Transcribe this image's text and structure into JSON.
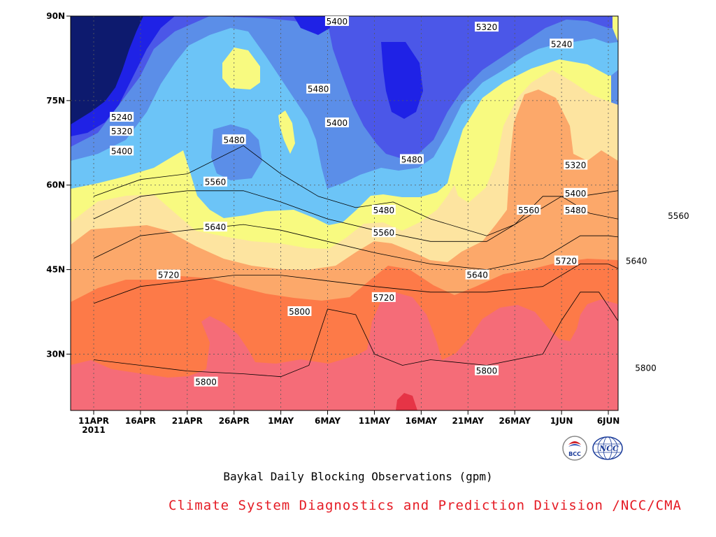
{
  "chart_data": {
    "type": "contour",
    "title": "Baykal Daily Blocking Observations (gpm)",
    "credit": "Climate System Diagnostics and Prediction Division /NCC/CMA",
    "xlabel": "",
    "ylabel": "",
    "x_ticks": [
      "11APR",
      "16APR",
      "21APR",
      "26APR",
      "1MAY",
      "6MAY",
      "11MAY",
      "16MAY",
      "21MAY",
      "26MAY",
      "1JUN",
      "6JUN"
    ],
    "x_year_label": "2011",
    "y_ticks": [
      "30N",
      "45N",
      "60N",
      "75N",
      "90N"
    ],
    "ylim": [
      20,
      90
    ],
    "contour_levels": [
      5240,
      5320,
      5400,
      5480,
      5560,
      5640,
      5720,
      5800
    ],
    "palette": [
      "#0d1a6e",
      "#1f22e6",
      "#4b57e8",
      "#5b8ee8",
      "#6cc4f7",
      "#f8fa80",
      "#fde4a0",
      "#fca86a",
      "#fd7a48",
      "#f56c78",
      "#e63446"
    ],
    "grid": "dotted",
    "contour_lines": [
      {
        "level": 5800,
        "points": [
          [
            0,
            29
          ],
          [
            5,
            28
          ],
          [
            10,
            27
          ],
          [
            16,
            26.5
          ],
          [
            20,
            26
          ],
          [
            23,
            28
          ],
          [
            25,
            38
          ],
          [
            28,
            37
          ],
          [
            30,
            30
          ],
          [
            33,
            28
          ],
          [
            36,
            29
          ],
          [
            42,
            28
          ],
          [
            48,
            30
          ],
          [
            50,
            36
          ],
          [
            52,
            41
          ],
          [
            54,
            41
          ],
          [
            56,
            36
          ],
          [
            58,
            30
          ],
          [
            60,
            29
          ],
          [
            63,
            33
          ],
          [
            66,
            38
          ],
          [
            70,
            39
          ],
          [
            73,
            36
          ],
          [
            75,
            32
          ],
          [
            78,
            31
          ],
          [
            80,
            35
          ],
          [
            82,
            40
          ],
          [
            85,
            39
          ]
        ]
      },
      {
        "level": 5720,
        "points": [
          [
            0,
            39
          ],
          [
            5,
            42
          ],
          [
            10,
            43
          ],
          [
            15,
            44
          ],
          [
            20,
            44
          ],
          [
            25,
            43
          ],
          [
            30,
            42
          ],
          [
            36,
            41
          ],
          [
            42,
            41
          ],
          [
            48,
            42
          ],
          [
            52,
            46
          ],
          [
            55,
            46
          ],
          [
            60,
            42
          ],
          [
            64,
            41
          ],
          [
            70,
            44
          ],
          [
            76,
            46
          ],
          [
            85,
            47
          ]
        ]
      },
      {
        "level": 5640,
        "points": [
          [
            0,
            47
          ],
          [
            5,
            51
          ],
          [
            10,
            52
          ],
          [
            16,
            53
          ],
          [
            20,
            52
          ],
          [
            25,
            50
          ],
          [
            30,
            48
          ],
          [
            36,
            46
          ],
          [
            42,
            45
          ],
          [
            48,
            47
          ],
          [
            52,
            51
          ],
          [
            55,
            51
          ],
          [
            60,
            50
          ],
          [
            64,
            46
          ],
          [
            70,
            53
          ],
          [
            72,
            70
          ],
          [
            74,
            76
          ],
          [
            77,
            74
          ],
          [
            79,
            68
          ],
          [
            82,
            66
          ],
          [
            84,
            67
          ],
          [
            85,
            64
          ]
        ]
      },
      {
        "level": 5560,
        "points": [
          [
            0,
            54
          ],
          [
            5,
            58
          ],
          [
            10,
            59
          ],
          [
            16,
            59
          ],
          [
            20,
            57
          ],
          [
            25,
            54
          ],
          [
            30,
            52
          ],
          [
            36,
            50
          ],
          [
            42,
            50
          ],
          [
            47,
            55
          ],
          [
            50,
            58
          ],
          [
            53,
            55
          ],
          [
            56,
            54
          ],
          [
            59,
            57
          ],
          [
            61,
            60
          ],
          [
            63,
            55
          ],
          [
            66,
            60
          ],
          [
            70,
            65
          ],
          [
            74,
            75
          ],
          [
            77,
            79
          ],
          [
            80,
            77
          ],
          [
            82,
            74
          ],
          [
            84,
            74
          ],
          [
            85,
            72
          ]
        ]
      },
      {
        "level": 5480,
        "points": [
          [
            0,
            58
          ],
          [
            5,
            61
          ],
          [
            10,
            62
          ],
          [
            16,
            67
          ],
          [
            20,
            62
          ],
          [
            24,
            58
          ],
          [
            28,
            56
          ],
          [
            32,
            57
          ],
          [
            36,
            54
          ],
          [
            42,
            51
          ],
          [
            45,
            53
          ],
          [
            48,
            58
          ],
          [
            52,
            58
          ],
          [
            56,
            59
          ],
          [
            59,
            63
          ],
          [
            62,
            68
          ],
          [
            66,
            76
          ],
          [
            70,
            82
          ],
          [
            74,
            84
          ],
          [
            78,
            84
          ],
          [
            82,
            82
          ],
          [
            85,
            81
          ]
        ]
      }
    ],
    "labels": [
      {
        "text": "5400",
        "x": 26,
        "y": 89
      },
      {
        "text": "5320",
        "x": 42,
        "y": 88
      },
      {
        "text": "5240",
        "x": 50,
        "y": 85
      },
      {
        "text": "5400",
        "x": 72,
        "y": 88
      },
      {
        "text": "5480",
        "x": 72,
        "y": 84
      },
      {
        "text": "5560",
        "x": 70,
        "y": 81
      },
      {
        "text": "5640",
        "x": 69,
        "y": 77
      },
      {
        "text": "5480",
        "x": 24,
        "y": 77
      },
      {
        "text": "5240",
        "x": 3,
        "y": 72
      },
      {
        "text": "5320",
        "x": 3,
        "y": 69.5
      },
      {
        "text": "5400",
        "x": 3,
        "y": 66
      },
      {
        "text": "5480",
        "x": 15,
        "y": 68
      },
      {
        "text": "5400",
        "x": 26,
        "y": 71
      },
      {
        "text": "5480",
        "x": 34,
        "y": 64.5
      },
      {
        "text": "5320",
        "x": 51.5,
        "y": 63.5
      },
      {
        "text": "5560",
        "x": 13,
        "y": 60.5
      },
      {
        "text": "5400",
        "x": 51.5,
        "y": 58.5
      },
      {
        "text": "5480",
        "x": 31,
        "y": 55.5
      },
      {
        "text": "5560",
        "x": 46.5,
        "y": 55.5
      },
      {
        "text": "5480",
        "x": 51.5,
        "y": 55.5
      },
      {
        "text": "5560",
        "x": 62.5,
        "y": 54.5
      },
      {
        "text": "5640",
        "x": 13,
        "y": 52.5
      },
      {
        "text": "5560",
        "x": 31,
        "y": 51.5
      },
      {
        "text": "5720",
        "x": 50.5,
        "y": 46.5
      },
      {
        "text": "5640",
        "x": 58,
        "y": 46.5
      },
      {
        "text": "5720",
        "x": 73,
        "y": 47.5
      },
      {
        "text": "5720",
        "x": 8,
        "y": 44
      },
      {
        "text": "5640",
        "x": 41,
        "y": 44
      },
      {
        "text": "5720",
        "x": 31,
        "y": 40
      },
      {
        "text": "5800",
        "x": 22,
        "y": 37.5
      },
      {
        "text": "5800",
        "x": 75,
        "y": 31
      },
      {
        "text": "5800",
        "x": 42,
        "y": 27
      },
      {
        "text": "5800",
        "x": 59,
        "y": 27.5
      },
      {
        "text": "5800",
        "x": 12,
        "y": 25
      }
    ],
    "logos": [
      {
        "text": "BCC",
        "icon": "bcc-logo-icon"
      },
      {
        "text": "NCC",
        "icon": "ncc-logo-icon"
      }
    ]
  }
}
